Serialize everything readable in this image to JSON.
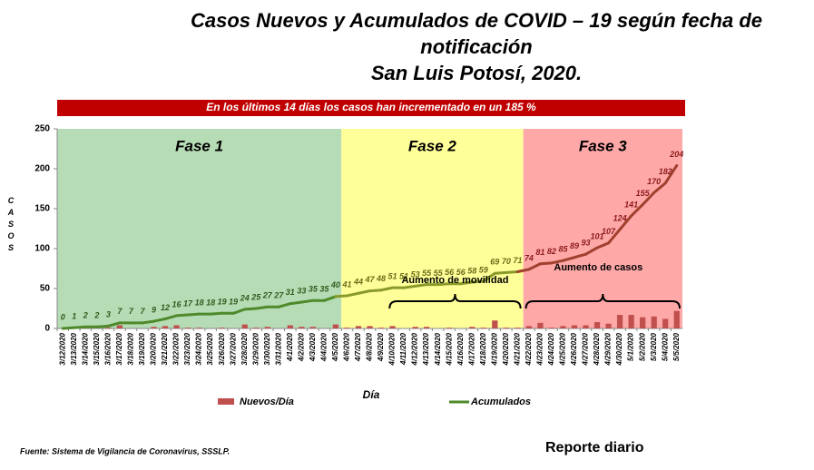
{
  "chart_data": {
    "type": "bar_line",
    "title": [
      "Casos Nuevos y Acumulados de COVID – 19 según fecha de",
      "notificación",
      "San Luis Potosí, 2020."
    ],
    "banner": "En los últimos 14 días los casos han incrementado en un 185 %",
    "ylabel": "CASOS",
    "xlabel": "Día",
    "categories": [
      "3/12/2020",
      "3/13/2020",
      "3/14/2020",
      "3/15/2020",
      "3/16/2020",
      "3/17/2020",
      "3/18/2020",
      "3/19/2020",
      "3/20/2020",
      "3/21/2020",
      "3/22/2020",
      "3/23/2020",
      "3/24/2020",
      "3/25/2020",
      "3/26/2020",
      "3/27/2020",
      "3/28/2020",
      "3/29/2020",
      "3/30/2020",
      "3/31/2020",
      "4/1/2020",
      "4/2/2020",
      "4/3/2020",
      "4/4/2020",
      "4/5/2020",
      "4/6/2020",
      "4/7/2020",
      "4/8/2020",
      "4/9/2020",
      "4/10/2020",
      "4/11/2020",
      "4/12/2020",
      "4/13/2020",
      "4/14/2020",
      "4/15/2020",
      "4/16/2020",
      "4/17/2020",
      "4/18/2020",
      "4/19/2020",
      "4/20/2020",
      "4/21/2020",
      "4/22/2020",
      "4/23/2020",
      "4/24/2020",
      "4/25/2020",
      "4/26/2020",
      "4/27/2020",
      "4/28/2020",
      "4/29/2020",
      "4/30/2020",
      "5/1/2020",
      "5/2/2020",
      "5/3/2020",
      "5/4/2020",
      "5/5/2020"
    ],
    "series": [
      {
        "name": "Nuevos/Día",
        "kind": "bar",
        "color": "#c0504d",
        "values": [
          0,
          1,
          1,
          0,
          1,
          4,
          0,
          0,
          2,
          3,
          4,
          1,
          1,
          0,
          1,
          0,
          5,
          1,
          2,
          0,
          4,
          2,
          2,
          0,
          5,
          1,
          3,
          3,
          1,
          3,
          0,
          2,
          2,
          0,
          1,
          0,
          2,
          1,
          10,
          1,
          1,
          3,
          7,
          1,
          3,
          4,
          4,
          8,
          6,
          17,
          17,
          14,
          15,
          12,
          22
        ]
      },
      {
        "name": "Acumulados",
        "kind": "line",
        "color": "#4e8a2a",
        "values": [
          0,
          1,
          2,
          2,
          3,
          7,
          7,
          7,
          9,
          12,
          16,
          17,
          18,
          18,
          19,
          19,
          24,
          25,
          27,
          27,
          31,
          33,
          35,
          35,
          40,
          41,
          44,
          47,
          48,
          51,
          51,
          53,
          55,
          55,
          56,
          56,
          58,
          59,
          69,
          70,
          71,
          74,
          81,
          82,
          85,
          89,
          93,
          101,
          107,
          124,
          141,
          155,
          170,
          182,
          204
        ]
      }
    ],
    "phases": [
      {
        "label": "Fase 1",
        "start": "3/12/2020",
        "end": "4/5/2020",
        "color": "#b6dcb6",
        "line_color": "#4e8a2a",
        "label_color": "#2f5a1a"
      },
      {
        "label": "Fase 2",
        "start": "4/6/2020",
        "end": "4/21/2020",
        "color": "#ffff99",
        "line_color": "#8a9a2a",
        "label_color": "#6b6b1a"
      },
      {
        "label": "Fase 3",
        "start": "4/22/2020",
        "end": "5/5/2020",
        "color": "#ffa8a8",
        "line_color": "#a0402e",
        "label_color": "#8b1a1a"
      }
    ],
    "annotations": [
      {
        "text": "Aumento de movilidad",
        "start": "4/10/2020",
        "end": "4/21/2020"
      },
      {
        "text": "Aumento de casos",
        "start": "4/22/2020",
        "end": "5/5/2020"
      }
    ],
    "ylim": [
      0,
      250
    ],
    "yticks": [
      0,
      50,
      100,
      150,
      200,
      250
    ],
    "source": "Fuente: Sistema de Vigilancia de Coronavirus, SSSLP.",
    "footer": "Reporte diario"
  }
}
